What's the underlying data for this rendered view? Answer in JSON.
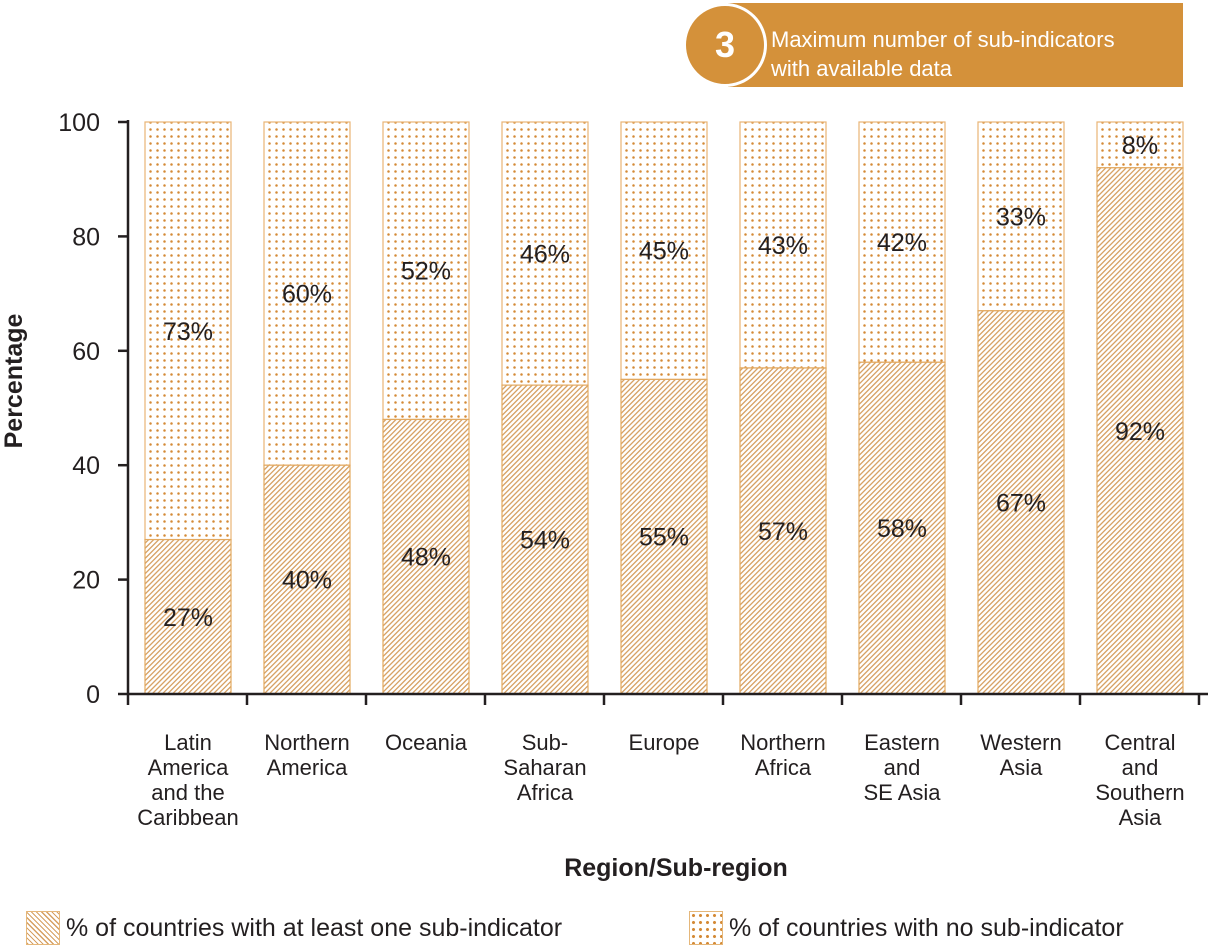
{
  "badge": {
    "number": "3",
    "line1": "Maximum number of sub-indicators",
    "line2": "with available data"
  },
  "colors": {
    "accent": "#d4913a",
    "hatch": "#d6a062",
    "dots": "#d48a36",
    "text": "#231f20"
  },
  "chart_data": {
    "type": "bar",
    "stacked": true,
    "ylabel": "Percentage",
    "xlabel": "Region/Sub-region",
    "ylim": [
      0,
      100
    ],
    "yticks": [
      "0",
      "20",
      "40",
      "60",
      "80",
      "100"
    ],
    "categories": [
      [
        "Latin",
        "America",
        "and the",
        "Caribbean"
      ],
      [
        "Northern",
        "America"
      ],
      [
        "Oceania"
      ],
      [
        "Sub-",
        "Saharan",
        "Africa"
      ],
      [
        "Europe"
      ],
      [
        "Northern",
        "Africa"
      ],
      [
        "Eastern",
        "and",
        "SE Asia"
      ],
      [
        "Western",
        "Asia"
      ],
      [
        "Central",
        "and",
        "Southern",
        "Asia"
      ]
    ],
    "series": [
      {
        "name": "% of countries with at least one sub-indicator",
        "values": [
          27,
          40,
          48,
          54,
          55,
          57,
          58,
          67,
          92
        ],
        "labels": [
          "27%",
          "40%",
          "48%",
          "54%",
          "55%",
          "57%",
          "58%",
          "67%",
          "92%"
        ]
      },
      {
        "name": "% of countries with no sub-indicator",
        "values": [
          73,
          60,
          52,
          46,
          45,
          43,
          42,
          33,
          8
        ],
        "labels": [
          "73%",
          "60%",
          "52%",
          "46%",
          "45%",
          "43%",
          "42%",
          "33%",
          "8%"
        ]
      }
    ],
    "grid": false,
    "legend": "bottom"
  }
}
